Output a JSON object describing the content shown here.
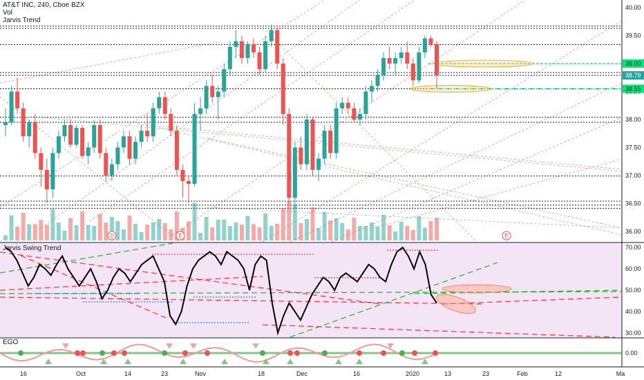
{
  "header": {
    "symbol_line": "AT&T INC, 240, Cboe BZX",
    "vol_label": "Vol",
    "indicator_label": "Jarvis Trend"
  },
  "panes": {
    "swing_label": "Jarvis Swing Trend",
    "ego_label": "EGO"
  },
  "colors": {
    "up": "#26a69a",
    "down": "#ef5350",
    "level_green": "#00e676",
    "swing_bg": "#f3e5f5",
    "trend_red": "#ff0000",
    "trend_green": "#00aa00"
  },
  "chart_data": [
    {
      "type": "candlestick",
      "title": "AT&T INC, 240, Cboe BZX",
      "price_axis_ticks": [
        "40.00",
        "39.50",
        "39.00",
        "38.50",
        "38.00",
        "37.50",
        "37.00",
        "36.50",
        "36.00"
      ],
      "ylim": [
        35.85,
        40.1
      ],
      "highlighted_levels": [
        {
          "label": "39.00",
          "value": 39.0,
          "color": "#00e676"
        },
        {
          "label": "38.79",
          "value": 38.79,
          "color": "#26a69a"
        },
        {
          "label": "38.55",
          "value": 38.55,
          "color": "#00e676"
        }
      ],
      "horizontal_levels": [
        39.67,
        39.63,
        39.34,
        38.84,
        38.79,
        38.55,
        38.04,
        37.95,
        36.99,
        36.54,
        36.47,
        36.41
      ],
      "event_markers": [
        {
          "text": "D"
        },
        {
          "text": "E"
        },
        {
          "text": "E"
        }
      ],
      "candles_ohlc": [
        [
          37.9,
          38.2,
          37.7,
          37.95
        ],
        [
          37.95,
          38.6,
          37.9,
          38.5
        ],
        [
          38.5,
          38.75,
          38.1,
          38.2
        ],
        [
          38.2,
          38.3,
          37.6,
          37.7
        ],
        [
          37.7,
          38.0,
          37.5,
          37.95
        ],
        [
          37.95,
          38.1,
          37.3,
          37.4
        ],
        [
          37.4,
          37.5,
          36.8,
          37.1
        ],
        [
          37.1,
          37.3,
          36.5,
          36.75
        ],
        [
          36.75,
          37.5,
          36.6,
          37.4
        ],
        [
          37.4,
          37.8,
          37.3,
          37.7
        ],
        [
          37.7,
          38.0,
          37.6,
          37.9
        ],
        [
          37.9,
          38.0,
          37.5,
          37.55
        ],
        [
          37.55,
          37.9,
          37.5,
          37.85
        ],
        [
          37.85,
          37.9,
          37.3,
          37.35
        ],
        [
          37.35,
          37.6,
          37.2,
          37.5
        ],
        [
          37.5,
          38.0,
          37.4,
          37.9
        ],
        [
          37.9,
          38.0,
          37.3,
          37.4
        ],
        [
          37.4,
          37.5,
          36.9,
          37.0
        ],
        [
          37.0,
          37.3,
          36.9,
          37.2
        ],
        [
          37.2,
          37.6,
          37.1,
          37.5
        ],
        [
          37.5,
          37.8,
          37.4,
          37.7
        ],
        [
          37.7,
          37.8,
          37.2,
          37.3
        ],
        [
          37.3,
          37.7,
          37.2,
          37.6
        ],
        [
          37.6,
          37.9,
          37.5,
          37.8
        ],
        [
          37.8,
          38.1,
          37.6,
          37.7
        ],
        [
          37.7,
          38.3,
          37.6,
          38.2
        ],
        [
          38.2,
          38.5,
          38.1,
          38.4
        ],
        [
          38.4,
          38.5,
          38.0,
          38.1
        ],
        [
          38.1,
          38.2,
          37.7,
          37.8
        ],
        [
          37.8,
          37.9,
          37.0,
          37.1
        ],
        [
          37.1,
          37.2,
          36.6,
          36.9
        ],
        [
          36.9,
          37.0,
          36.5,
          36.85
        ],
        [
          36.85,
          38.3,
          36.8,
          38.1
        ],
        [
          38.1,
          38.4,
          37.8,
          38.2
        ],
        [
          38.2,
          38.7,
          38.1,
          38.6
        ],
        [
          38.6,
          38.8,
          38.3,
          38.4
        ],
        [
          38.4,
          38.6,
          38.0,
          38.5
        ],
        [
          38.5,
          39.0,
          38.4,
          38.9
        ],
        [
          38.9,
          39.4,
          38.8,
          39.3
        ],
        [
          39.3,
          39.6,
          39.1,
          39.4
        ],
        [
          39.4,
          39.5,
          39.0,
          39.1
        ],
        [
          39.1,
          39.4,
          39.0,
          39.35
        ],
        [
          39.35,
          39.45,
          39.1,
          39.2
        ],
        [
          39.2,
          39.3,
          38.8,
          38.9
        ],
        [
          38.9,
          39.5,
          38.85,
          39.4
        ],
        [
          39.4,
          39.7,
          39.3,
          39.6
        ],
        [
          39.6,
          39.65,
          38.9,
          39.0
        ],
        [
          39.0,
          39.1,
          37.9,
          38.1
        ],
        [
          38.1,
          38.2,
          36.5,
          36.6
        ],
        [
          36.6,
          37.6,
          36.4,
          37.5
        ],
        [
          37.5,
          37.7,
          37.1,
          37.2
        ],
        [
          37.2,
          38.1,
          37.1,
          38.0
        ],
        [
          38.0,
          38.05,
          37.0,
          37.1
        ],
        [
          37.1,
          37.4,
          36.9,
          37.3
        ],
        [
          37.3,
          37.9,
          37.2,
          37.8
        ],
        [
          37.8,
          37.9,
          37.3,
          37.4
        ],
        [
          37.4,
          38.3,
          37.3,
          38.2
        ],
        [
          38.2,
          38.4,
          38.1,
          38.3
        ],
        [
          38.3,
          38.4,
          38.1,
          38.2
        ],
        [
          38.2,
          38.3,
          37.95,
          38.0
        ],
        [
          38.0,
          38.2,
          37.9,
          38.1
        ],
        [
          38.1,
          38.6,
          38.0,
          38.5
        ],
        [
          38.5,
          38.7,
          38.3,
          38.6
        ],
        [
          38.6,
          38.9,
          38.5,
          38.8
        ],
        [
          38.8,
          39.2,
          38.7,
          39.1
        ],
        [
          39.1,
          39.3,
          38.9,
          39.0
        ],
        [
          39.0,
          39.2,
          38.8,
          39.1
        ],
        [
          39.1,
          39.3,
          39.0,
          39.2
        ],
        [
          39.2,
          39.4,
          38.9,
          39.0
        ],
        [
          39.0,
          39.1,
          38.6,
          38.7
        ],
        [
          38.7,
          39.3,
          38.65,
          39.2
        ],
        [
          39.2,
          39.5,
          39.1,
          39.45
        ],
        [
          39.45,
          39.5,
          39.3,
          39.35
        ],
        [
          39.35,
          39.4,
          38.55,
          38.79
        ]
      ]
    },
    {
      "type": "line",
      "title": "Jarvis Swing Trend",
      "y_axis_ticks": [
        "70.00",
        "60.00",
        "50.00",
        "40.00",
        "30.00"
      ],
      "ylim": [
        28,
        72
      ],
      "values": [
        70,
        68,
        64,
        58,
        52,
        56,
        62,
        60,
        57,
        62,
        66,
        60,
        56,
        52,
        56,
        60,
        54,
        46,
        50,
        56,
        60,
        58,
        54,
        58,
        62,
        64,
        66,
        60,
        54,
        38,
        34,
        40,
        52,
        60,
        64,
        66,
        68,
        66,
        62,
        68,
        66,
        64,
        60,
        50,
        62,
        66,
        64,
        44,
        30,
        38,
        44,
        40,
        36,
        42,
        48,
        52,
        56,
        54,
        50,
        56,
        58,
        56,
        54,
        58,
        62,
        60,
        56,
        54,
        62,
        68,
        70,
        66,
        60,
        68,
        62,
        48,
        44
      ]
    },
    {
      "type": "line",
      "title": "EGO",
      "y_axis_ticks": [
        "0.00"
      ]
    }
  ],
  "date_axis": [
    "16",
    "Oct",
    "14",
    "23",
    "Nov",
    "18",
    "Dec",
    "16",
    "2020",
    "13",
    "23",
    "Feb",
    "12",
    "Ma"
  ]
}
